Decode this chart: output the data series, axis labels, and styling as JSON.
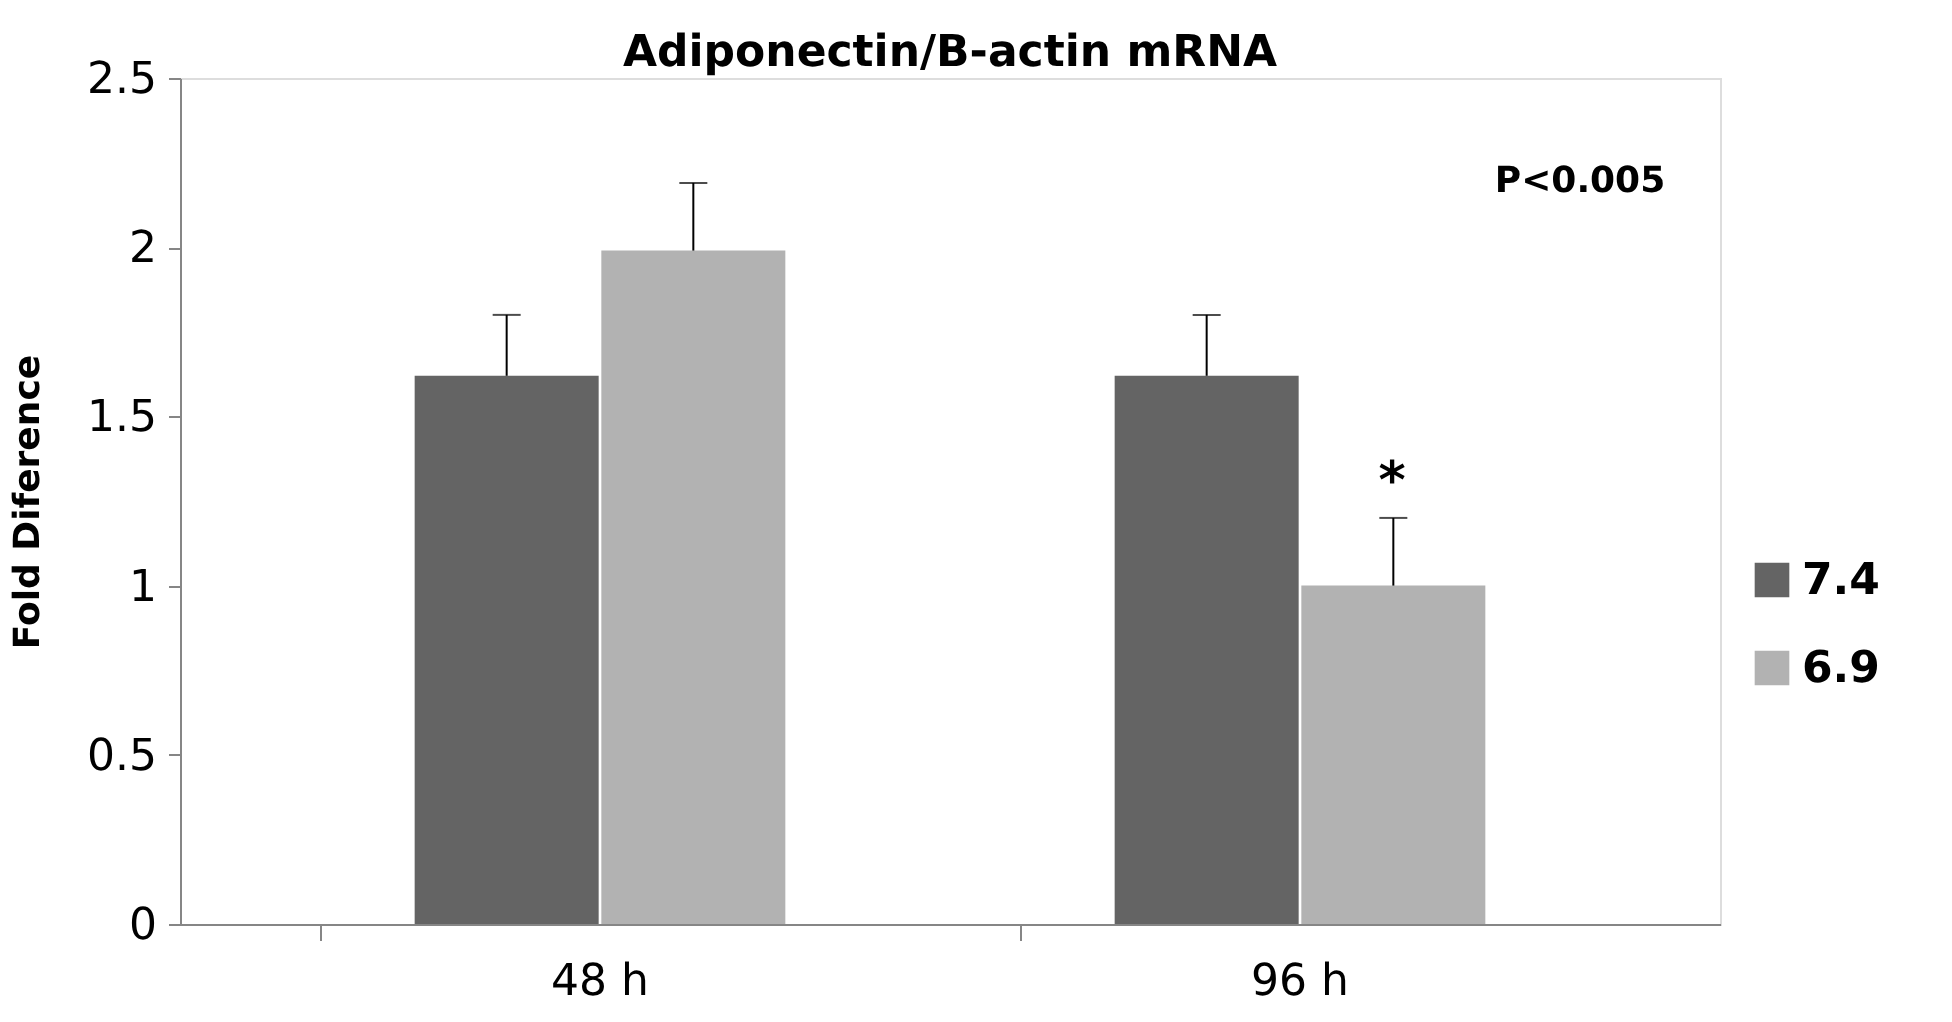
{
  "chart_data": {
    "type": "bar",
    "title": "Adiponectin/B-actin mRNA",
    "ylabel": "Fold Diference",
    "categories": [
      "48 h",
      "96 h"
    ],
    "series": [
      {
        "name": "7.4",
        "color": "#646464",
        "values": [
          1.62,
          1.62
        ],
        "errors": [
          [
            1.62,
            1.8
          ],
          [
            1.62,
            1.8
          ]
        ]
      },
      {
        "name": "6.9",
        "color": "#b2b2b2",
        "values": [
          1.99,
          1.0
        ],
        "errors": [
          [
            1.99,
            2.19
          ],
          [
            1.0,
            1.2
          ]
        ]
      }
    ],
    "ylim": [
      0,
      2.5
    ],
    "yticks": [
      0,
      0.5,
      1,
      1.5,
      2,
      2.5
    ],
    "grid": false,
    "legend": "right",
    "annotations": [
      "P<0.005",
      "*"
    ]
  }
}
